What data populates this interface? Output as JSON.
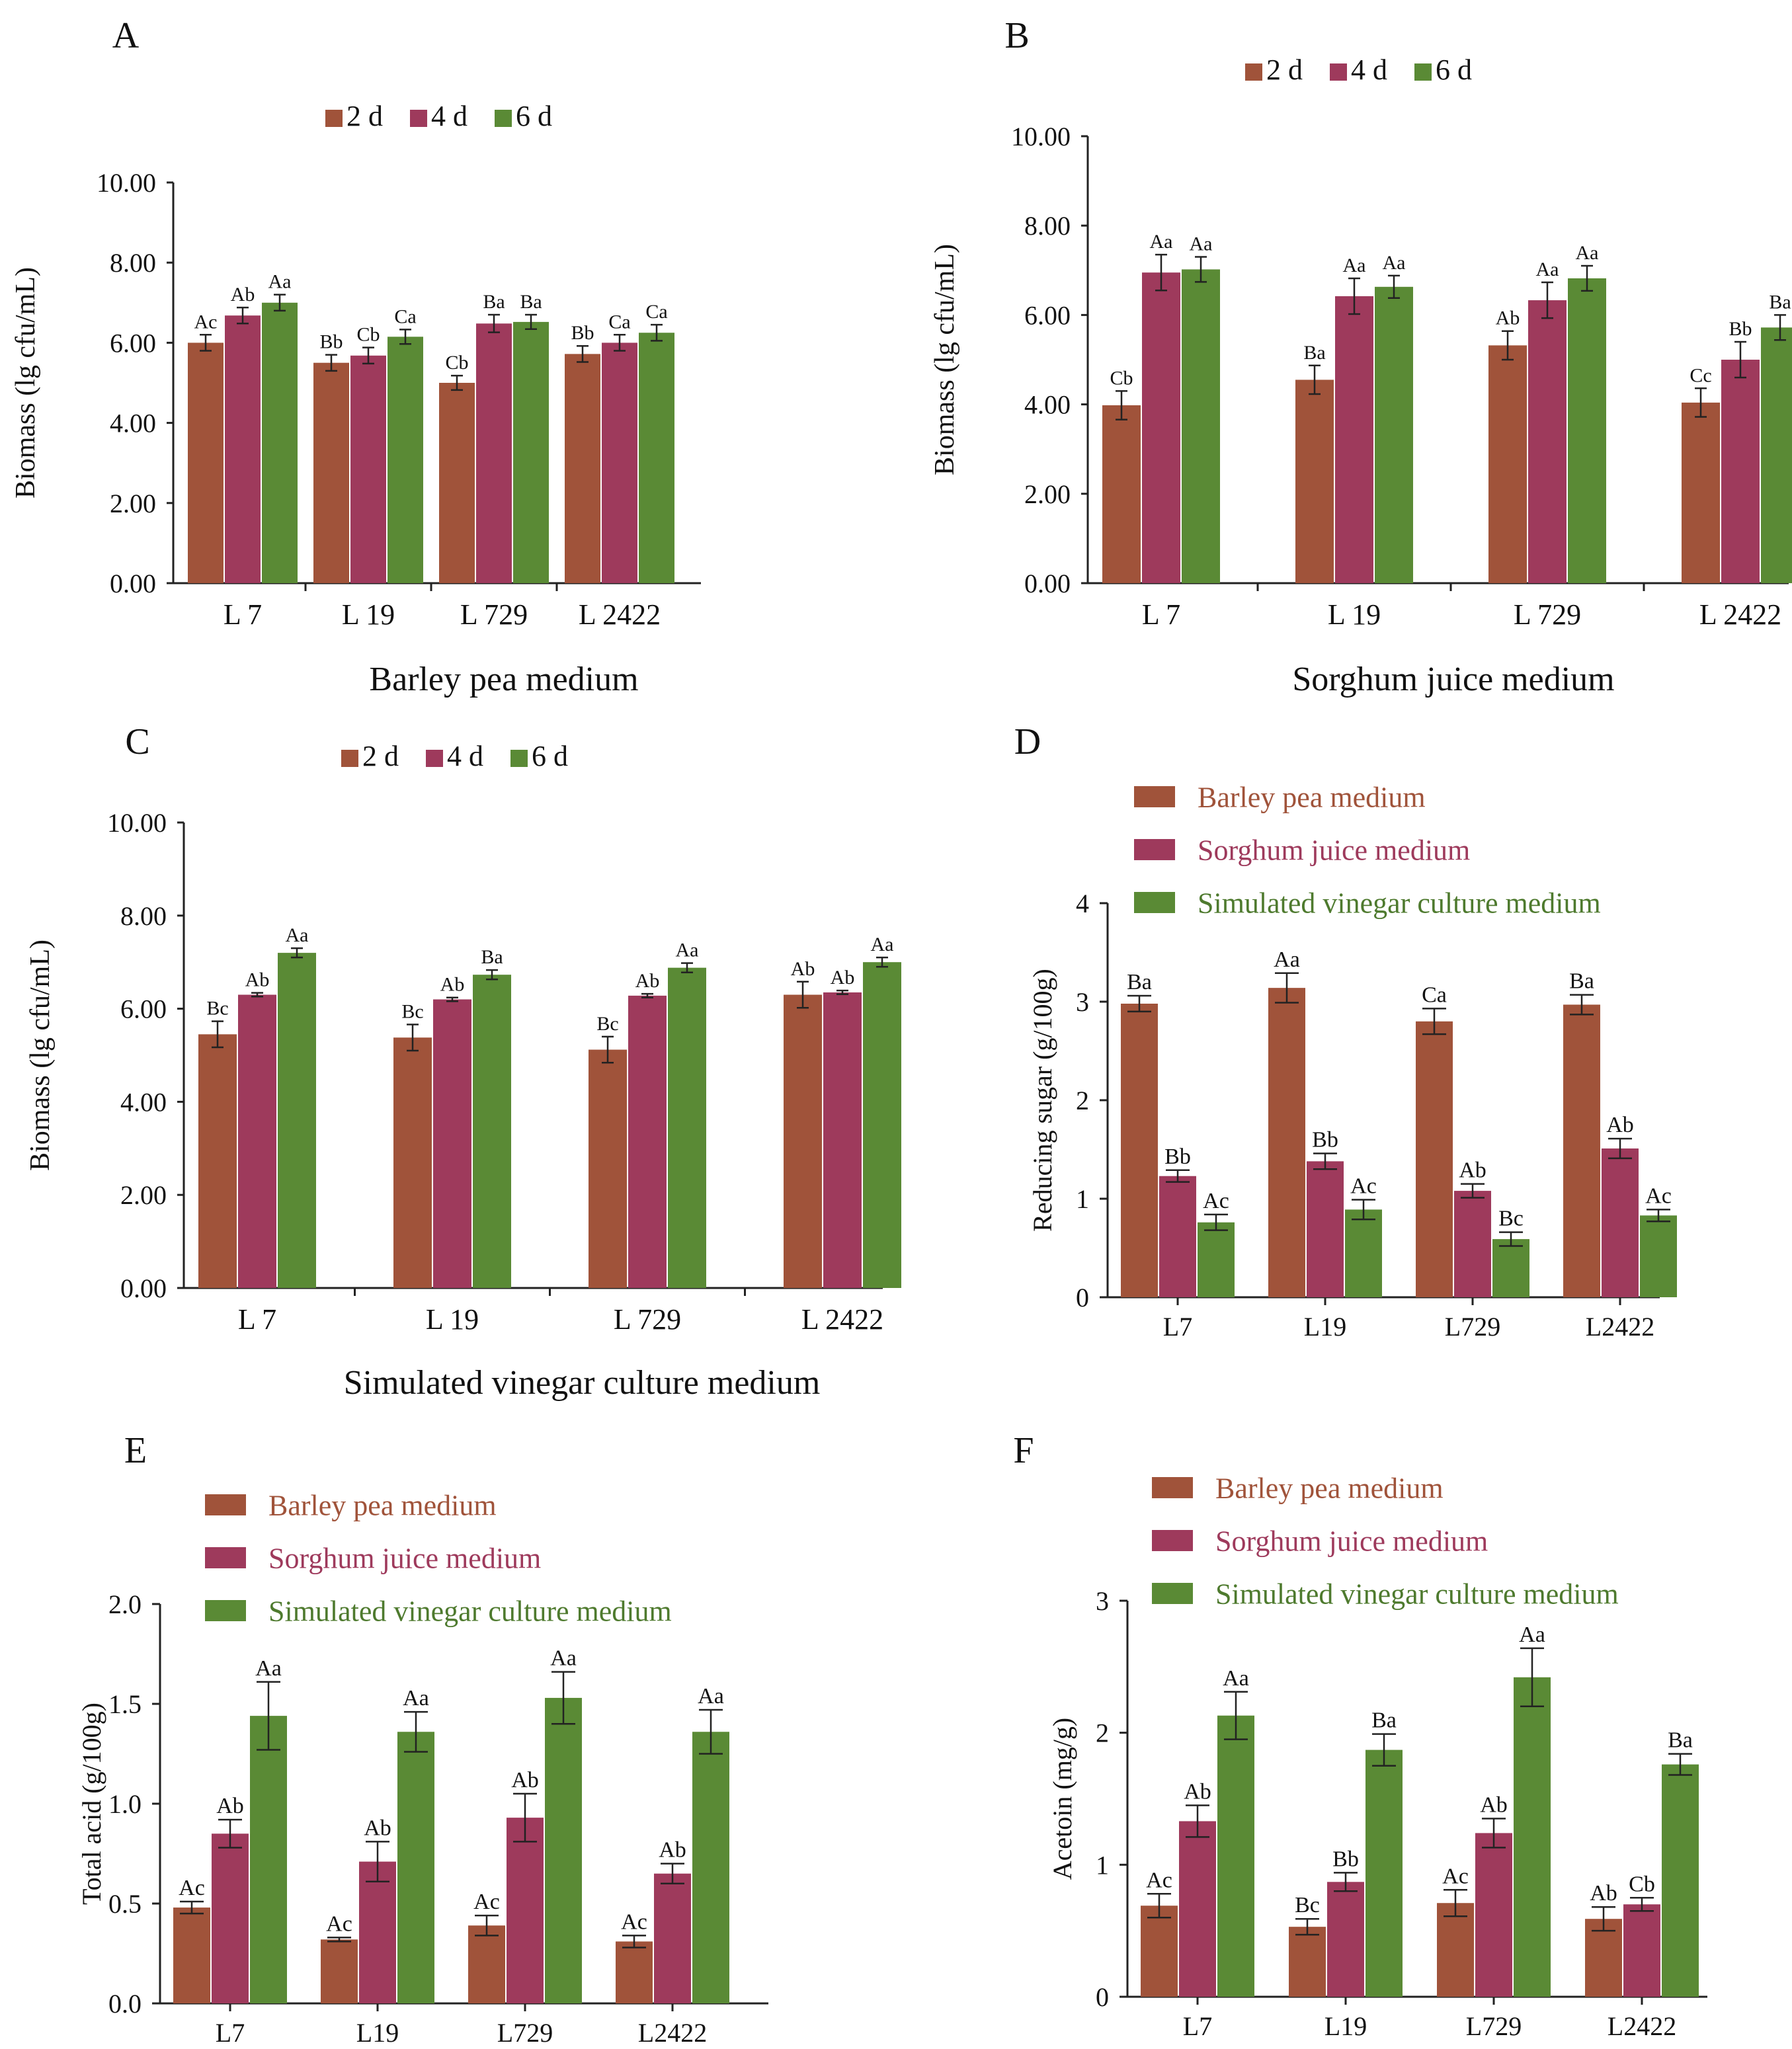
{
  "chart_data": [
    {
      "panel": "A",
      "type": "bar",
      "title": "",
      "xlabel": "Barley  pea  medium",
      "ylabel": "Biomass  (lg cfu/mL)",
      "categories": [
        "L 7",
        "L 19",
        "L 729",
        "L 2422"
      ],
      "ylim": [
        0,
        10
      ],
      "yticks": [
        "0.00",
        "2.00",
        "4.00",
        "6.00",
        "8.00",
        "10.00"
      ],
      "legend_position": "top-center-horizontal",
      "series": [
        {
          "name": "2 d",
          "values": [
            6.0,
            5.5,
            5.0,
            5.72
          ],
          "errors": [
            0.2,
            0.2,
            0.18,
            0.2
          ],
          "labels": [
            "Ac",
            "Bb",
            "Cb",
            "Bb"
          ]
        },
        {
          "name": "4 d",
          "values": [
            6.68,
            5.68,
            6.48,
            6.0
          ],
          "errors": [
            0.2,
            0.2,
            0.22,
            0.2
          ],
          "labels": [
            "Ab",
            "Cb",
            "Ba",
            "Ca"
          ]
        },
        {
          "name": "6 d",
          "values": [
            7.0,
            6.15,
            6.52,
            6.25
          ],
          "errors": [
            0.2,
            0.18,
            0.18,
            0.2
          ],
          "labels": [
            "Aa",
            "Ca",
            "Ba",
            "Ca"
          ]
        }
      ]
    },
    {
      "panel": "B",
      "type": "bar",
      "title": "",
      "xlabel": "Sorghum  juice  medium",
      "ylabel": "Biomass (lg cfu/mL)",
      "categories": [
        "L 7",
        "L 19",
        "L 729",
        "L 2422"
      ],
      "ylim": [
        0,
        10
      ],
      "yticks": [
        "0.00",
        "2.00",
        "4.00",
        "6.00",
        "8.00",
        "10.00"
      ],
      "legend_position": "top-center-horizontal",
      "series": [
        {
          "name": "2 d",
          "values": [
            3.98,
            4.55,
            5.32,
            4.04
          ],
          "errors": [
            0.32,
            0.32,
            0.32,
            0.32
          ],
          "labels": [
            "Cb",
            "Ba",
            "Ab",
            "Cc"
          ]
        },
        {
          "name": "4 d",
          "values": [
            6.95,
            6.42,
            6.33,
            5.0
          ],
          "errors": [
            0.4,
            0.4,
            0.4,
            0.4
          ],
          "labels": [
            "Aa",
            "Aa",
            "Aa",
            "Bb"
          ]
        },
        {
          "name": "6 d",
          "values": [
            7.02,
            6.63,
            6.82,
            5.72
          ],
          "errors": [
            0.28,
            0.25,
            0.28,
            0.28
          ],
          "labels": [
            "Aa",
            "Aa",
            "Aa",
            "Ba"
          ]
        }
      ]
    },
    {
      "panel": "C",
      "type": "bar",
      "title": "",
      "xlabel": "Simulated  vinegar  culture  medium",
      "ylabel": "Biomass (lg cfu/mL)",
      "categories": [
        "L 7",
        "L 19",
        "L 729",
        "L 2422"
      ],
      "ylim": [
        0,
        10
      ],
      "yticks": [
        "0.00",
        "2.00",
        "4.00",
        "6.00",
        "8.00",
        "10.00"
      ],
      "legend_position": "top-center-horizontal",
      "series": [
        {
          "name": "2 d",
          "values": [
            5.45,
            5.38,
            5.12,
            6.3
          ],
          "errors": [
            0.28,
            0.28,
            0.28,
            0.28
          ],
          "labels": [
            "Bc",
            "Bc",
            "Bc",
            "Ab"
          ]
        },
        {
          "name": "4 d",
          "values": [
            6.3,
            6.2,
            6.28,
            6.35
          ],
          "errors": [
            0.04,
            0.04,
            0.04,
            0.04
          ],
          "labels": [
            "Ab",
            "Ab",
            "Ab",
            "Ab"
          ]
        },
        {
          "name": "6 d",
          "values": [
            7.2,
            6.73,
            6.88,
            7.0
          ],
          "errors": [
            0.1,
            0.1,
            0.1,
            0.1
          ],
          "labels": [
            "Aa",
            "Ba",
            "Aa",
            "Aa"
          ]
        }
      ]
    },
    {
      "panel": "D",
      "type": "bar",
      "title": "",
      "xlabel": "",
      "ylabel": "Reducing sugar (g/100g)",
      "categories": [
        "L7",
        "L19",
        "L729",
        "L2422"
      ],
      "ylim": [
        0,
        4
      ],
      "yticks": [
        "0",
        "1",
        "2",
        "3",
        "4"
      ],
      "legend_position": "top-stacked",
      "series": [
        {
          "name": "Barley pea medium",
          "values": [
            2.98,
            3.14,
            2.8,
            2.97
          ],
          "errors": [
            0.08,
            0.15,
            0.13,
            0.1
          ],
          "labels": [
            "Ba",
            "Aa",
            "Ca",
            "Ba"
          ]
        },
        {
          "name": "Sorghum juice medium",
          "values": [
            1.23,
            1.38,
            1.08,
            1.51
          ],
          "errors": [
            0.06,
            0.08,
            0.07,
            0.1
          ],
          "labels": [
            "Bb",
            "Bb",
            "Ab",
            "Ab"
          ]
        },
        {
          "name": "Simulated vinegar culture medium",
          "values": [
            0.76,
            0.89,
            0.59,
            0.83
          ],
          "errors": [
            0.08,
            0.1,
            0.07,
            0.06
          ],
          "labels": [
            "Ac",
            "Ac",
            "Bc",
            "Ac"
          ]
        }
      ]
    },
    {
      "panel": "E",
      "type": "bar",
      "title": "",
      "xlabel": "",
      "ylabel": "Total acid (g/100g)",
      "categories": [
        "L7",
        "L19",
        "L729",
        "L2422"
      ],
      "ylim": [
        0,
        2
      ],
      "yticks": [
        "0.0",
        "0.5",
        "1.0",
        "1.5",
        "2.0"
      ],
      "legend_position": "top-stacked",
      "series": [
        {
          "name": "Barley pea medium",
          "values": [
            0.48,
            0.32,
            0.39,
            0.31
          ],
          "errors": [
            0.03,
            0.01,
            0.05,
            0.03
          ],
          "labels": [
            "Ac",
            "Ac",
            "Ac",
            "Ac"
          ]
        },
        {
          "name": "Sorghum juice medium",
          "values": [
            0.85,
            0.71,
            0.93,
            0.65
          ],
          "errors": [
            0.07,
            0.1,
            0.12,
            0.05
          ],
          "labels": [
            "Ab",
            "Ab",
            "Ab",
            "Ab"
          ]
        },
        {
          "name": "Simulated vinegar culture medium",
          "values": [
            1.44,
            1.36,
            1.53,
            1.36
          ],
          "errors": [
            0.17,
            0.1,
            0.13,
            0.11
          ],
          "labels": [
            "Aa",
            "Aa",
            "Aa",
            "Aa"
          ]
        }
      ]
    },
    {
      "panel": "F",
      "type": "bar",
      "title": "",
      "xlabel": "",
      "ylabel": "Acetoin (mg/g)",
      "categories": [
        "L7",
        "L19",
        "L729",
        "L2422"
      ],
      "ylim": [
        0,
        3
      ],
      "yticks": [
        "0",
        "1",
        "2",
        "3"
      ],
      "legend_position": "top-stacked",
      "series": [
        {
          "name": "Barley pea medium",
          "values": [
            0.69,
            0.53,
            0.71,
            0.59
          ],
          "errors": [
            0.09,
            0.06,
            0.1,
            0.09
          ],
          "labels": [
            "Ac",
            "Bc",
            "Ac",
            "Ab"
          ]
        },
        {
          "name": "Sorghum juice medium",
          "values": [
            1.33,
            0.87,
            1.24,
            0.7
          ],
          "errors": [
            0.12,
            0.07,
            0.11,
            0.05
          ],
          "labels": [
            "Ab",
            "Bb",
            "Ab",
            "Cb"
          ]
        },
        {
          "name": "Simulated vinegar culture medium",
          "values": [
            2.13,
            1.87,
            2.42,
            1.76
          ],
          "errors": [
            0.18,
            0.12,
            0.22,
            0.08
          ],
          "labels": [
            "Aa",
            "Ba",
            "Aa",
            "Ba"
          ]
        }
      ]
    }
  ],
  "colors": {
    "series": [
      "#A0533A",
      "#9E3A5C",
      "#5A8A35"
    ],
    "legend_text": [
      "#A0533A",
      "#9E3A5C",
      "#4E7A2E"
    ],
    "axis": "#222222",
    "text": "#111111"
  }
}
